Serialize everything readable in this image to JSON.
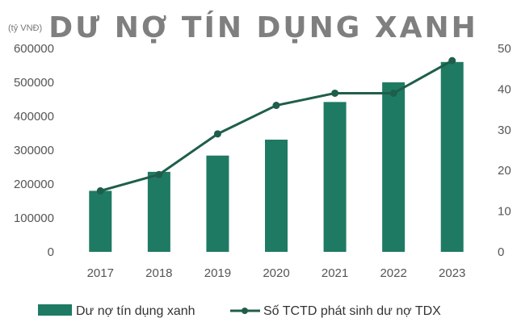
{
  "chart_data": {
    "type": "bar",
    "title": "DƯ NỢ TÍN DỤNG XANH",
    "ylabel": "(tỷ VNĐ)",
    "categories": [
      "2017",
      "2018",
      "2019",
      "2020",
      "2021",
      "2022",
      "2023"
    ],
    "series": [
      {
        "name": "Dư nợ tín dụng xanh",
        "type": "bar",
        "axis": "left",
        "color": "#1f7a63",
        "values": [
          180000,
          236000,
          284000,
          331000,
          442000,
          500000,
          560000
        ]
      },
      {
        "name": "Số TCTD phát sinh dư nợ TDX",
        "type": "line",
        "axis": "right",
        "color": "#1f5e4b",
        "values": [
          15,
          19,
          29,
          36,
          39,
          39,
          47
        ]
      }
    ],
    "ylim": [
      0,
      600000
    ],
    "yticks": [
      "0",
      "100000",
      "200000",
      "300000",
      "400000",
      "500000",
      "600000"
    ],
    "y2lim": [
      0,
      50
    ],
    "y2ticks": [
      "0",
      "10",
      "20",
      "30",
      "40",
      "50"
    ],
    "grid": false,
    "legend": "bottom"
  }
}
